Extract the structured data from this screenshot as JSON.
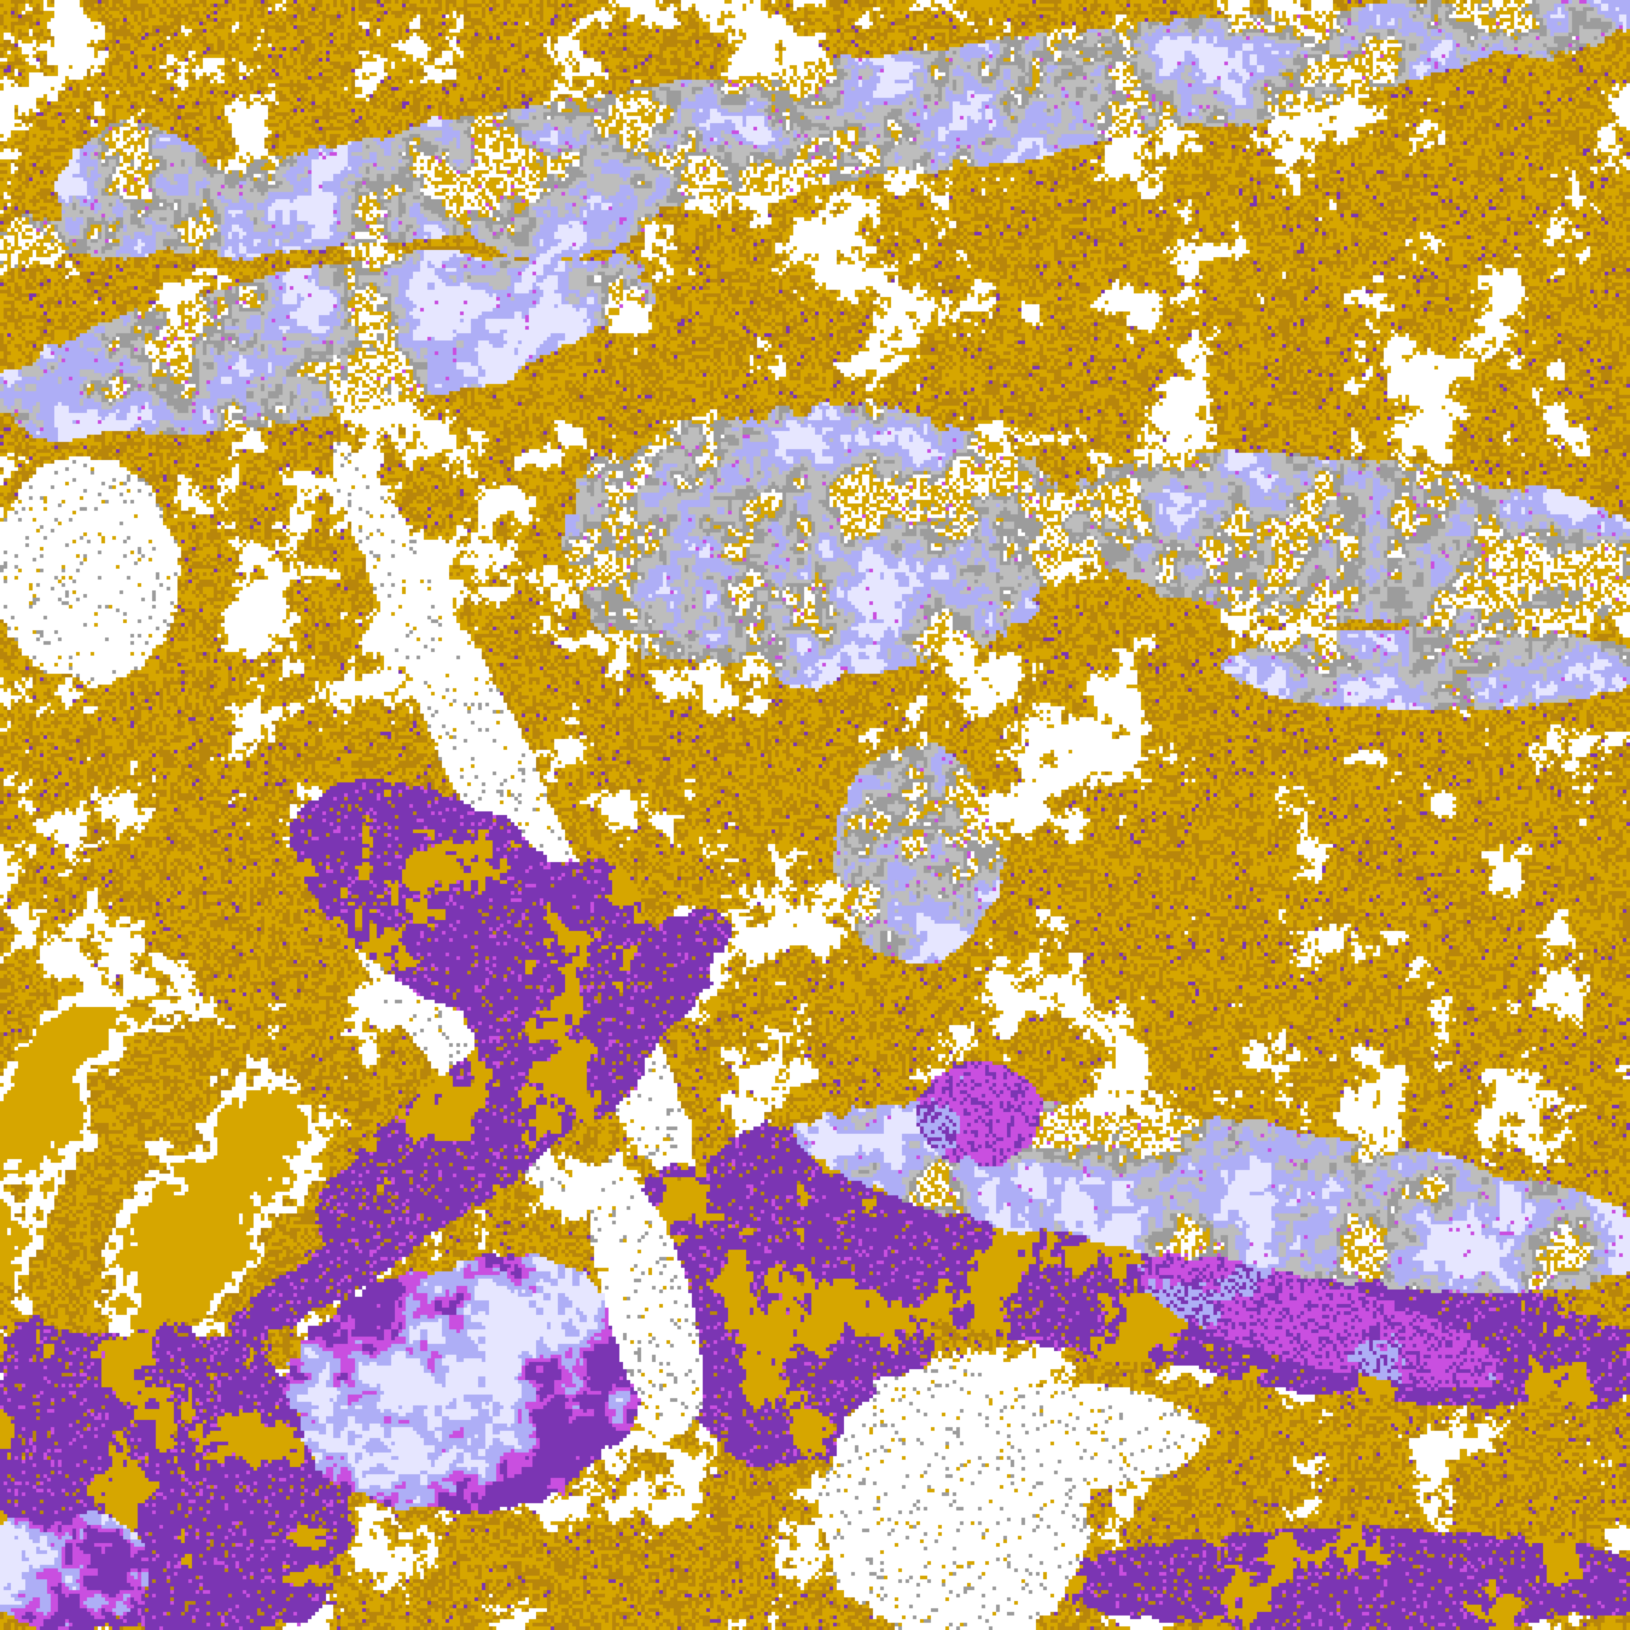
{
  "image": {
    "kind": "false-color satellite cloud imagery",
    "palette": {
      "clear": "#ffffff",
      "gold": "#d6a600",
      "gold_dark": "#b8860b",
      "purple": "#7b35b3",
      "magenta": "#c94fe0",
      "lavender": "#aeaef6",
      "pale": "#e6e6ff",
      "gray": "#9c9c9c",
      "gray_light": "#bdbdbd"
    }
  }
}
